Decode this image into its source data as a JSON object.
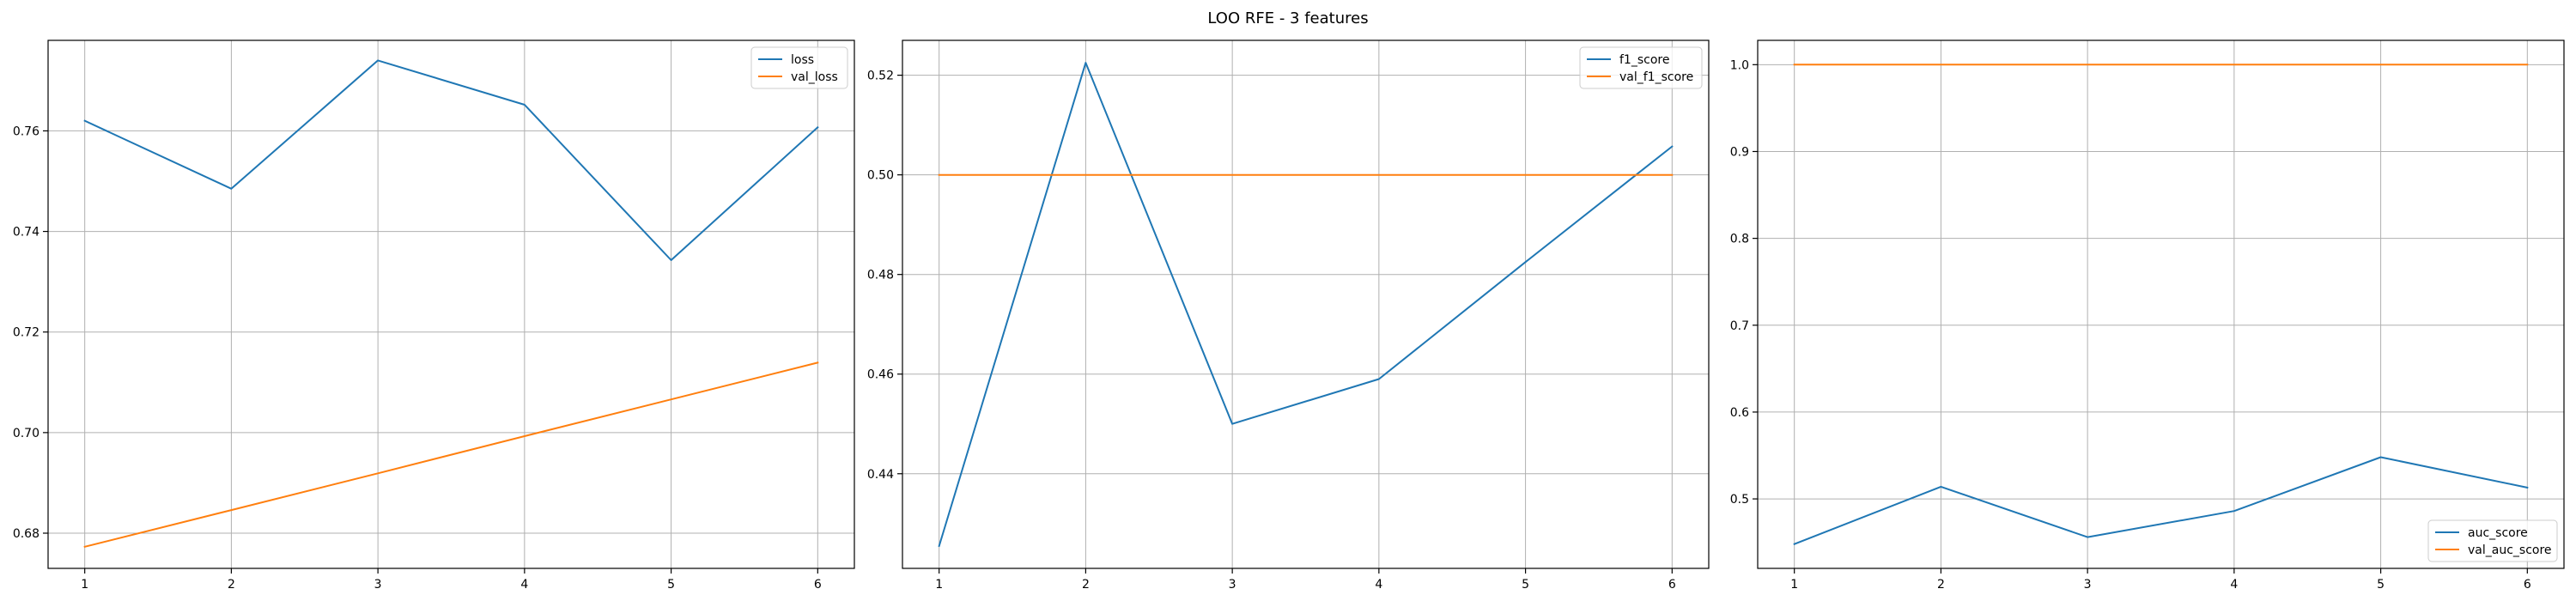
{
  "figure": {
    "suptitle": "LOO RFE - 3 features"
  },
  "colors": {
    "series_1": "#1f77b4",
    "series_2": "#ff7f0e",
    "grid": "#b0b0b0",
    "frame": "#000000"
  },
  "chart_data": [
    {
      "type": "line",
      "title": "",
      "xlabel": "",
      "ylabel": "",
      "x": [
        1,
        2,
        3,
        4,
        5,
        6
      ],
      "xticks": [
        1,
        2,
        3,
        4,
        5,
        6
      ],
      "xlim": [
        0.75,
        6.25
      ],
      "ylim": [
        0.673,
        0.778
      ],
      "yticks": [
        0.68,
        0.7,
        0.72,
        0.74,
        0.76
      ],
      "ytick_labels": [
        "0.68",
        "0.70",
        "0.72",
        "0.74",
        "0.76"
      ],
      "grid": true,
      "legend_position": "top-right",
      "series": [
        {
          "name": "loss",
          "color": "#1f77b4",
          "values": [
            0.762,
            0.7485,
            0.774,
            0.7652,
            0.7343,
            0.7607
          ]
        },
        {
          "name": "val_loss",
          "color": "#ff7f0e",
          "values": [
            0.6773,
            0.6846,
            0.6919,
            0.6993,
            0.7066,
            0.7139
          ]
        }
      ]
    },
    {
      "type": "line",
      "title": "",
      "xlabel": "",
      "ylabel": "",
      "x": [
        1,
        2,
        3,
        4,
        5,
        6
      ],
      "xticks": [
        1,
        2,
        3,
        4,
        5,
        6
      ],
      "xlim": [
        0.75,
        6.25
      ],
      "ylim": [
        0.421,
        0.527
      ],
      "yticks": [
        0.44,
        0.46,
        0.48,
        0.5,
        0.52
      ],
      "ytick_labels": [
        "0.44",
        "0.46",
        "0.48",
        "0.50",
        "0.52"
      ],
      "grid": true,
      "legend_position": "top-right",
      "series": [
        {
          "name": "f1_score",
          "color": "#1f77b4",
          "values": [
            0.4255,
            0.5225,
            0.45,
            0.459,
            0.4825,
            0.5057
          ]
        },
        {
          "name": "val_f1_score",
          "color": "#ff7f0e",
          "values": [
            0.5,
            0.5,
            0.5,
            0.5,
            0.5,
            0.5
          ]
        }
      ]
    },
    {
      "type": "line",
      "title": "",
      "xlabel": "",
      "ylabel": "",
      "x": [
        1,
        2,
        3,
        4,
        5,
        6
      ],
      "xticks": [
        1,
        2,
        3,
        4,
        5,
        6
      ],
      "xlim": [
        0.75,
        6.25
      ],
      "ylim": [
        0.42,
        1.028
      ],
      "yticks": [
        0.5,
        0.6,
        0.7,
        0.8,
        0.9,
        1.0
      ],
      "ytick_labels": [
        "0.5",
        "0.6",
        "0.7",
        "0.8",
        "0.9",
        "1.0"
      ],
      "grid": true,
      "legend_position": "bottom-right",
      "series": [
        {
          "name": "auc_score",
          "color": "#1f77b4",
          "values": [
            0.448,
            0.514,
            0.456,
            0.486,
            0.548,
            0.513
          ]
        },
        {
          "name": "val_auc_score",
          "color": "#ff7f0e",
          "values": [
            1.0,
            1.0,
            1.0,
            1.0,
            1.0,
            1.0
          ]
        }
      ]
    }
  ]
}
